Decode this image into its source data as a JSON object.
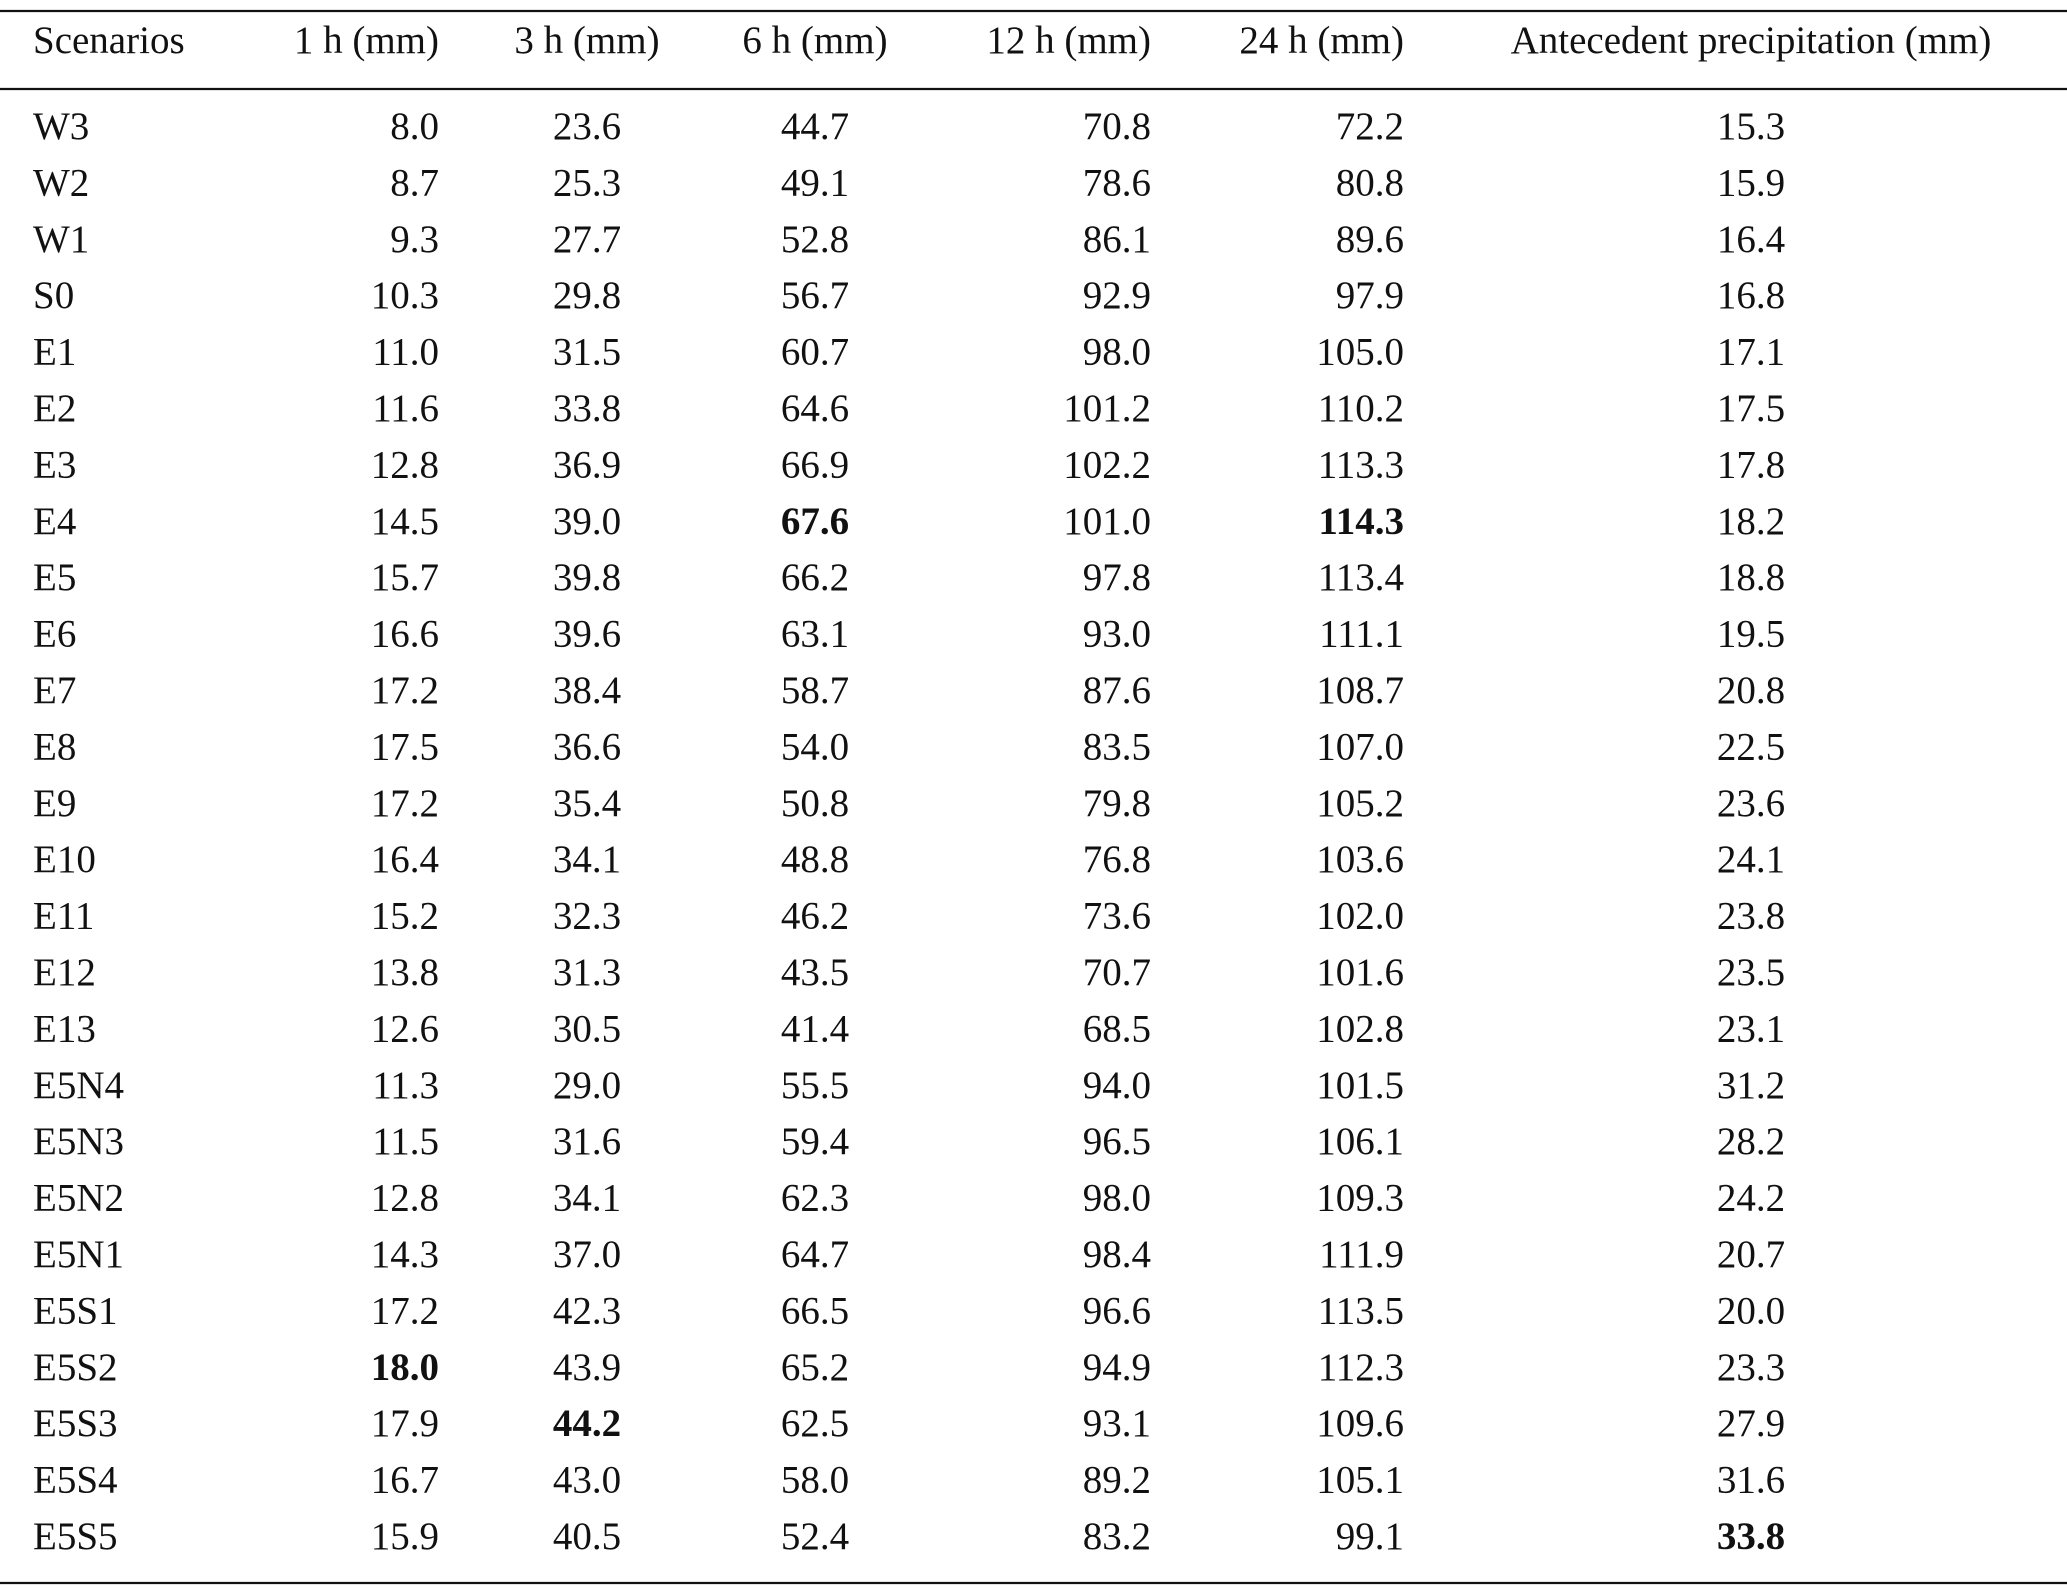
{
  "table": {
    "header": [
      "Scenarios",
      "1 h (mm)",
      "3 h (mm)",
      "6 h (mm)",
      "12 h (mm)",
      "24 h (mm)",
      "Antecedent precipitation (mm)"
    ],
    "rows": [
      [
        "W3",
        "8.0",
        "23.6",
        "44.7",
        "70.8",
        "72.2",
        "15.3"
      ],
      [
        "W2",
        "8.7",
        "25.3",
        "49.1",
        "78.6",
        "80.8",
        "15.9"
      ],
      [
        "W1",
        "9.3",
        "27.7",
        "52.8",
        "86.1",
        "89.6",
        "16.4"
      ],
      [
        "S0",
        "10.3",
        "29.8",
        "56.7",
        "92.9",
        "97.9",
        "16.8"
      ],
      [
        "E1",
        "11.0",
        "31.5",
        "60.7",
        "98.0",
        "105.0",
        "17.1"
      ],
      [
        "E2",
        "11.6",
        "33.8",
        "64.6",
        "101.2",
        "110.2",
        "17.5"
      ],
      [
        "E3",
        "12.8",
        "36.9",
        "66.9",
        "102.2",
        "113.3",
        "17.8"
      ],
      [
        "E4",
        "14.5",
        "39.0",
        "67.6",
        "101.0",
        "114.3",
        "18.2"
      ],
      [
        "E5",
        "15.7",
        "39.8",
        "66.2",
        "97.8",
        "113.4",
        "18.8"
      ],
      [
        "E6",
        "16.6",
        "39.6",
        "63.1",
        "93.0",
        "111.1",
        "19.5"
      ],
      [
        "E7",
        "17.2",
        "38.4",
        "58.7",
        "87.6",
        "108.7",
        "20.8"
      ],
      [
        "E8",
        "17.5",
        "36.6",
        "54.0",
        "83.5",
        "107.0",
        "22.5"
      ],
      [
        "E9",
        "17.2",
        "35.4",
        "50.8",
        "79.8",
        "105.2",
        "23.6"
      ],
      [
        "E10",
        "16.4",
        "34.1",
        "48.8",
        "76.8",
        "103.6",
        "24.1"
      ],
      [
        "E11",
        "15.2",
        "32.3",
        "46.2",
        "73.6",
        "102.0",
        "23.8"
      ],
      [
        "E12",
        "13.8",
        "31.3",
        "43.5",
        "70.7",
        "101.6",
        "23.5"
      ],
      [
        "E13",
        "12.6",
        "30.5",
        "41.4",
        "68.5",
        "102.8",
        "23.1"
      ],
      [
        "E5N4",
        "11.3",
        "29.0",
        "55.5",
        "94.0",
        "101.5",
        "31.2"
      ],
      [
        "E5N3",
        "11.5",
        "31.6",
        "59.4",
        "96.5",
        "106.1",
        "28.2"
      ],
      [
        "E5N2",
        "12.8",
        "34.1",
        "62.3",
        "98.0",
        "109.3",
        "24.2"
      ],
      [
        "E5N1",
        "14.3",
        "37.0",
        "64.7",
        "98.4",
        "111.9",
        "20.7"
      ],
      [
        "E5S1",
        "17.2",
        "42.3",
        "66.5",
        "96.6",
        "113.5",
        "20.0"
      ],
      [
        "E5S2",
        "18.0",
        "43.9",
        "65.2",
        "94.9",
        "112.3",
        "23.3"
      ],
      [
        "E5S3",
        "17.9",
        "44.2",
        "62.5",
        "93.1",
        "109.6",
        "27.9"
      ],
      [
        "E5S4",
        "16.7",
        "43.0",
        "58.0",
        "89.2",
        "105.1",
        "31.6"
      ],
      [
        "E5S5",
        "15.9",
        "40.5",
        "52.4",
        "83.2",
        "99.1",
        "33.8"
      ]
    ],
    "bold_cells": [
      [
        7,
        3
      ],
      [
        7,
        5
      ],
      [
        22,
        1
      ],
      [
        23,
        2
      ],
      [
        25,
        6
      ]
    ]
  }
}
